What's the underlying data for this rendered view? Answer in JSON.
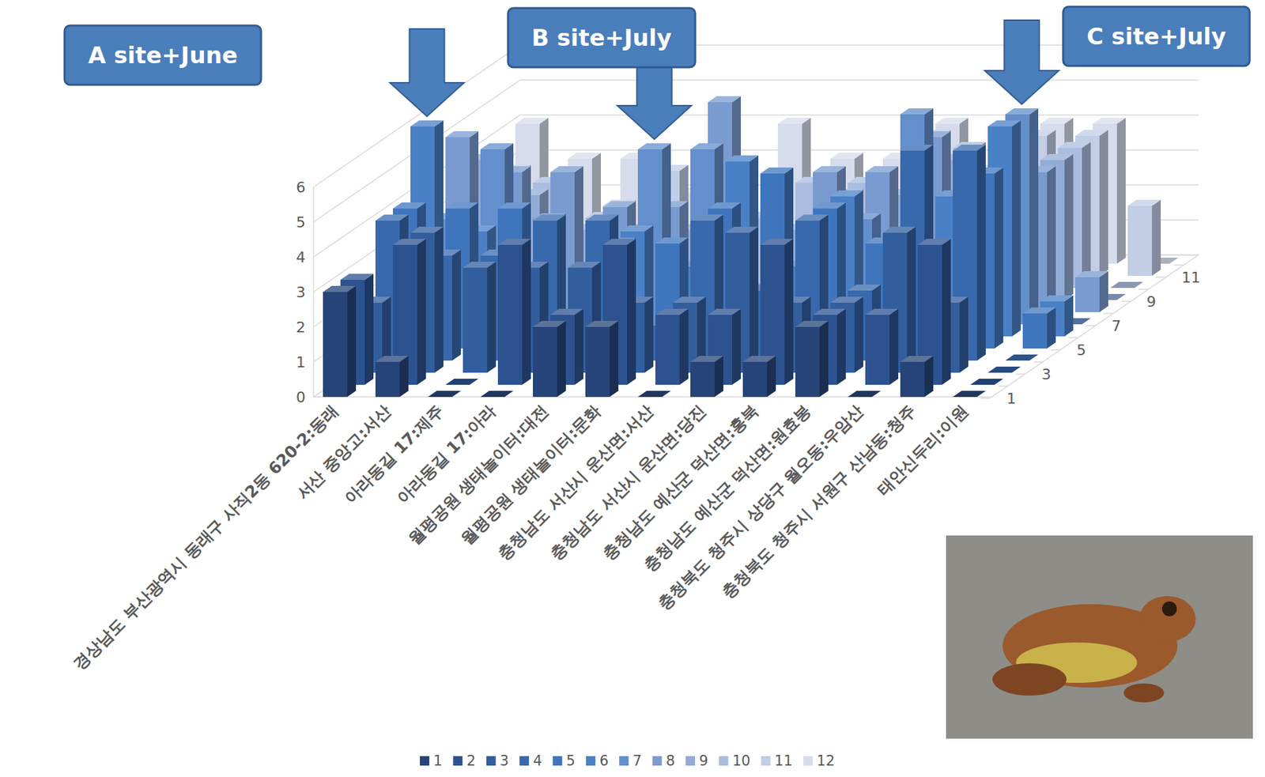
{
  "chart_data": {
    "type": "bar",
    "categories": [
      "경상남도 부산광역시 동래구 사직2동 620-2:동래",
      "서산 중앙고:서산",
      "아라동길 17:제주",
      "아라동길 17:아라",
      "월평공원 생태놀이터:대전",
      "월평공원 생태놀이터:문화",
      "충청남도 서산시 운산면:서산",
      "충청남도 서산시 운산면:당진",
      "충청남도 예산군 덕산면:홍북",
      "충청남도 예산군 덕산면:원효봉",
      "충청북도 청주시 상당구 월오동:우암산",
      "충청북도 청주시 서원구 산남동:청주",
      "태안신두리:이원"
    ],
    "series": [
      {
        "name": "1",
        "color": "#264478",
        "values": [
          3,
          1,
          0,
          0,
          2,
          2,
          0,
          1,
          1,
          2,
          0,
          1,
          0
        ]
      },
      {
        "name": "2",
        "color": "#2c5290",
        "values": [
          3,
          4,
          0,
          4,
          2,
          4,
          2,
          2,
          4,
          2,
          2,
          4,
          0
        ]
      },
      {
        "name": "3",
        "color": "#325e9e",
        "values": [
          2,
          4,
          3,
          3,
          3,
          2,
          2,
          4,
          2,
          2,
          4,
          2,
          0
        ]
      },
      {
        "name": "4",
        "color": "#3869ad",
        "values": [
          4,
          3,
          3,
          4,
          4,
          1,
          4,
          2,
          4,
          2,
          6,
          6,
          0
        ]
      },
      {
        "name": "5",
        "color": "#3f75bd",
        "values": [
          4,
          4,
          4,
          0,
          3,
          3,
          4,
          5,
          4,
          3,
          2,
          5,
          1
        ]
      },
      {
        "name": "6",
        "color": "#4a80c6",
        "values": [
          6,
          3,
          1,
          0,
          3,
          2,
          5,
          2,
          4,
          2,
          4,
          6,
          1
        ]
      },
      {
        "name": "7",
        "color": "#638fcc",
        "values": [
          3,
          5,
          3,
          2,
          5,
          5,
          1,
          2,
          3,
          6,
          4,
          6,
          0
        ]
      },
      {
        "name": "8",
        "color": "#7a9bcf",
        "values": [
          5,
          4,
          4,
          3,
          3,
          6,
          3,
          4,
          4,
          5,
          2,
          4,
          1
        ]
      },
      {
        "name": "9",
        "color": "#93acd7",
        "values": [
          4,
          3,
          2,
          2,
          2,
          3,
          2,
          3,
          3,
          4,
          3,
          4,
          0
        ]
      },
      {
        "name": "10",
        "color": "#aabcdf",
        "values": [
          3,
          3,
          2,
          2,
          3,
          2,
          3,
          3,
          2,
          4,
          3,
          4,
          0
        ]
      },
      {
        "name": "11",
        "color": "#c2cde6",
        "values": [
          3,
          2,
          2,
          3,
          3,
          2,
          2,
          2,
          4,
          3,
          4,
          4,
          2
        ]
      },
      {
        "name": "12",
        "color": "#d6dcec",
        "values": [
          4,
          3,
          3,
          2,
          2,
          4,
          3,
          3,
          4,
          3,
          4,
          4,
          0
        ]
      }
    ],
    "ylim": [
      0,
      6
    ],
    "yticks": [
      0,
      1,
      2,
      3,
      4,
      5,
      6
    ],
    "grid": true,
    "legend": "bottom",
    "annotations": [
      "A site+June",
      "B site+July",
      "C site+July"
    ]
  }
}
